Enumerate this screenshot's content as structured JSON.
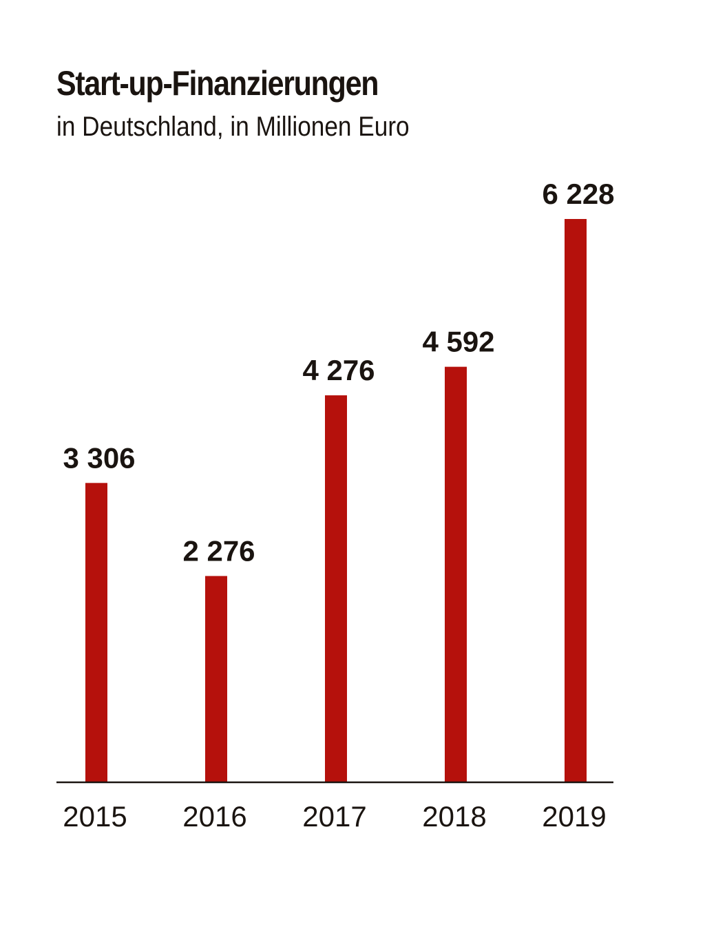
{
  "chart_data": {
    "type": "bar",
    "title": "Start-up-Finanzierungen",
    "subtitle": "in Deutschland, in Millionen Euro",
    "categories": [
      "2015",
      "2016",
      "2017",
      "2018",
      "2019"
    ],
    "values": [
      3306,
      2276,
      4276,
      4592,
      6228
    ],
    "value_labels": [
      "3 306",
      "2 276",
      "4 276",
      "4 592",
      "6 228"
    ],
    "xlabel": "",
    "ylabel": "",
    "ylim": [
      0,
      6228
    ],
    "grid": false,
    "legend": "none",
    "bar_color": "#b5110c",
    "axis_color": "#1a1410",
    "text_color": "#1a1410"
  }
}
